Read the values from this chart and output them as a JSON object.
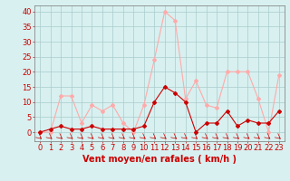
{
  "x": [
    0,
    1,
    2,
    3,
    4,
    5,
    6,
    7,
    8,
    9,
    10,
    11,
    12,
    13,
    14,
    15,
    16,
    17,
    18,
    19,
    20,
    21,
    22,
    23
  ],
  "rafales": [
    0,
    0,
    12,
    12,
    3,
    9,
    7,
    9,
    3,
    0,
    9,
    24,
    40,
    37,
    11,
    17,
    9,
    8,
    20,
    20,
    20,
    11,
    0,
    19
  ],
  "moyen": [
    0,
    1,
    2,
    1,
    1,
    2,
    1,
    1,
    1,
    1,
    2,
    10,
    15,
    13,
    10,
    0,
    3,
    3,
    7,
    2,
    4,
    3,
    3,
    7
  ],
  "color_rafales": "#ffaaaa",
  "color_moyen": "#cc0000",
  "bg_color": "#d8f0f0",
  "grid_color": "#aacccc",
  "xlabel": "Vent moyen/en rafales ( km/h )",
  "xlabel_fontsize": 7,
  "tick_fontsize": 6,
  "ylim": [
    -3,
    42
  ],
  "yticks": [
    0,
    5,
    10,
    15,
    20,
    25,
    30,
    35,
    40
  ]
}
